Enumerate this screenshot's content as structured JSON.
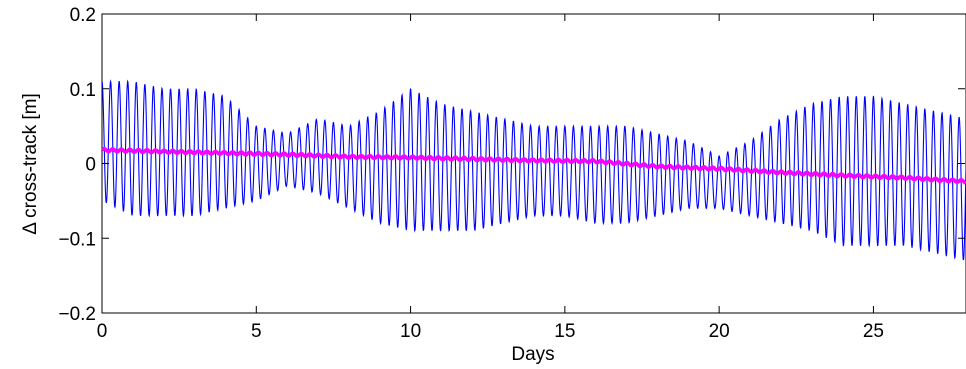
{
  "chart_data": {
    "type": "line",
    "title": "",
    "xlabel": "Days",
    "ylabel": "Δ cross-track [m]",
    "xlim": [
      0,
      28
    ],
    "ylim": [
      -0.2,
      0.2
    ],
    "x_ticks": [
      0,
      5,
      10,
      15,
      20,
      25
    ],
    "x_tick_labels": [
      "0",
      "5",
      "10",
      "15",
      "20",
      "25"
    ],
    "y_ticks": [
      -0.2,
      -0.1,
      0,
      0.1,
      0.2
    ],
    "y_tick_labels": [
      "−0.2",
      "−0.1",
      "0",
      "0.1",
      "0.2"
    ],
    "grid": false,
    "series": [
      {
        "color": "#0000ff",
        "style": "oscillation",
        "cycles_per_day": 3.6,
        "envelope_days": [
          0,
          1,
          2,
          3,
          4,
          5,
          6,
          7,
          8,
          9,
          10,
          11,
          12,
          13,
          14,
          15,
          16,
          17,
          18,
          19,
          20,
          21,
          22,
          23,
          24,
          25,
          26,
          27,
          28
        ],
        "upper_envelope": [
          0.11,
          0.11,
          0.1,
          0.1,
          0.09,
          0.05,
          0.04,
          0.06,
          0.05,
          0.07,
          0.1,
          0.08,
          0.07,
          0.06,
          0.05,
          0.05,
          0.05,
          0.05,
          0.04,
          0.03,
          0.01,
          0.03,
          0.06,
          0.08,
          0.09,
          0.09,
          0.08,
          0.07,
          0.06
        ],
        "lower_envelope": [
          -0.05,
          -0.07,
          -0.07,
          -0.07,
          -0.06,
          -0.05,
          -0.03,
          -0.04,
          -0.06,
          -0.08,
          -0.09,
          -0.09,
          -0.09,
          -0.08,
          -0.07,
          -0.07,
          -0.08,
          -0.08,
          -0.07,
          -0.06,
          -0.06,
          -0.07,
          -0.08,
          -0.09,
          -0.11,
          -0.11,
          -0.11,
          -0.12,
          -0.13
        ]
      },
      {
        "color": "#ff00ff",
        "style": "smooth",
        "x": [
          0,
          2,
          4,
          6,
          8,
          10,
          12,
          14,
          16,
          18,
          20,
          22,
          24,
          26,
          28
        ],
        "values": [
          0.018,
          0.016,
          0.014,
          0.012,
          0.009,
          0.008,
          0.006,
          0.004,
          0.003,
          -0.004,
          -0.007,
          -0.012,
          -0.016,
          -0.019,
          -0.024
        ]
      }
    ]
  }
}
